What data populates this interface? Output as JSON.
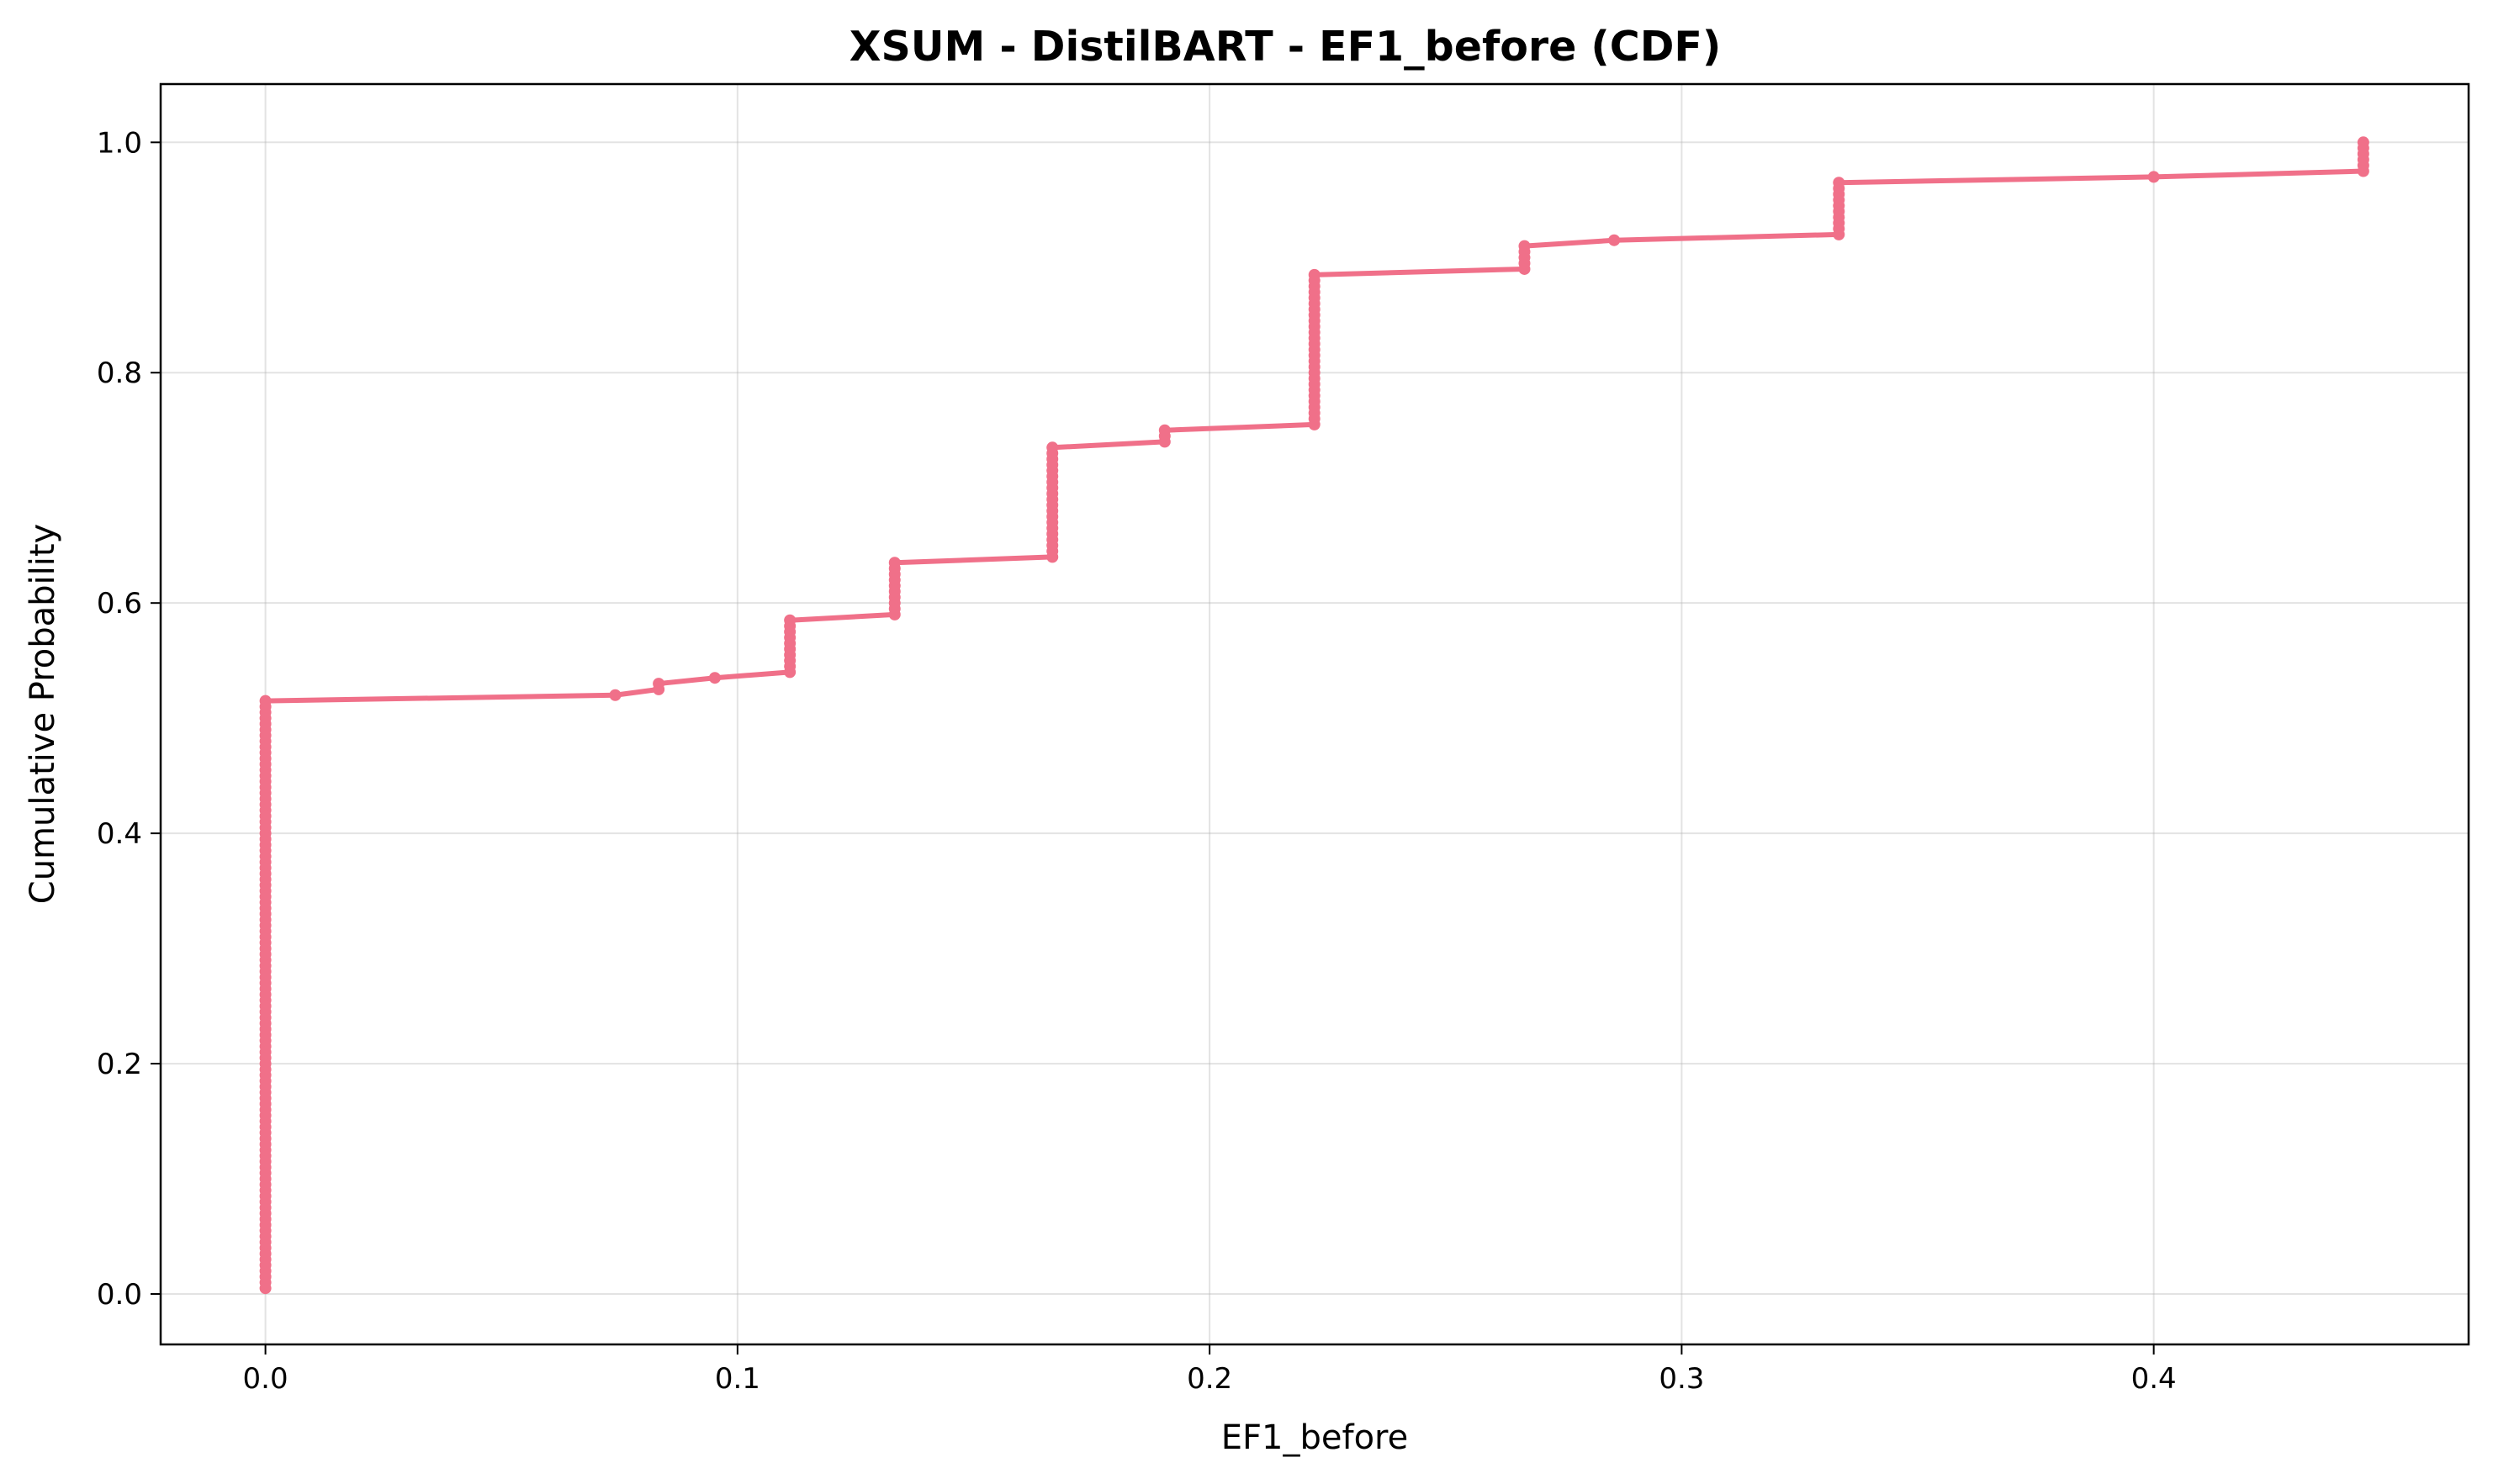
{
  "chart_data": {
    "type": "line",
    "title": "XSUM - DistilBART - EF1_before (CDF)",
    "xlabel": "EF1_before",
    "ylabel": "Cumulative Probability",
    "xlim": [
      -0.0222,
      0.4667
    ],
    "ylim": [
      -0.0438,
      1.0506
    ],
    "xticks": [
      0.0,
      0.1,
      0.2,
      0.3,
      0.4
    ],
    "xtick_labels": [
      "0.0",
      "0.1",
      "0.2",
      "0.3",
      "0.4"
    ],
    "yticks": [
      0.0,
      0.2,
      0.4,
      0.6,
      0.8,
      1.0
    ],
    "ytick_labels": [
      "0.0",
      "0.2",
      "0.4",
      "0.6",
      "0.8",
      "1.0"
    ],
    "grid": true,
    "color": "#f07089",
    "steps": [
      {
        "x": 0.0,
        "y_from": 0.005,
        "y_to": 0.515
      },
      {
        "x": 0.0741,
        "y_from": 0.52,
        "y_to": 0.52
      },
      {
        "x": 0.0833,
        "y_from": 0.525,
        "y_to": 0.53
      },
      {
        "x": 0.0952,
        "y_from": 0.535,
        "y_to": 0.535
      },
      {
        "x": 0.1111,
        "y_from": 0.54,
        "y_to": 0.585
      },
      {
        "x": 0.1333,
        "y_from": 0.59,
        "y_to": 0.635
      },
      {
        "x": 0.1667,
        "y_from": 0.64,
        "y_to": 0.735
      },
      {
        "x": 0.1905,
        "y_from": 0.74,
        "y_to": 0.75
      },
      {
        "x": 0.2222,
        "y_from": 0.755,
        "y_to": 0.885
      },
      {
        "x": 0.2667,
        "y_from": 0.89,
        "y_to": 0.91
      },
      {
        "x": 0.2857,
        "y_from": 0.915,
        "y_to": 0.915
      },
      {
        "x": 0.3333,
        "y_from": 0.92,
        "y_to": 0.965
      },
      {
        "x": 0.4,
        "y_from": 0.97,
        "y_to": 0.97
      },
      {
        "x": 0.4444,
        "y_from": 0.975,
        "y_to": 1.0
      }
    ],
    "point_step": 0.005
  }
}
